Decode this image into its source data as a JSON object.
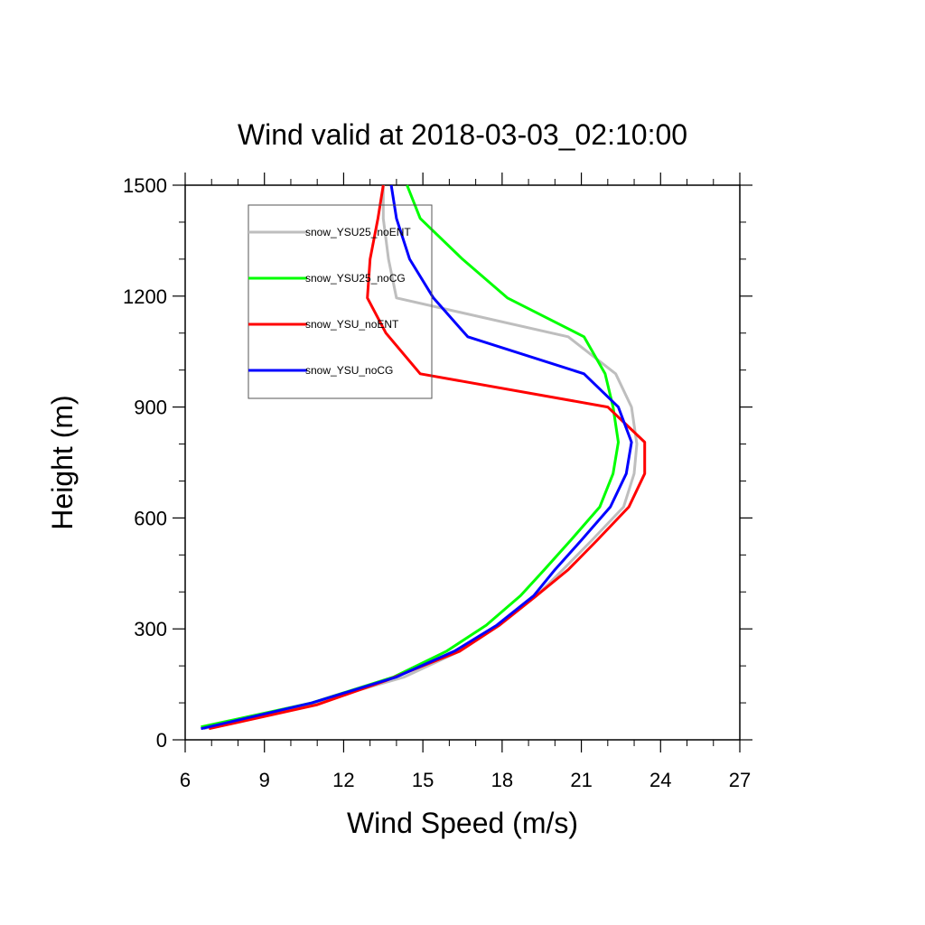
{
  "chart_data": {
    "type": "line",
    "title": "Wind valid at 2018-03-03_02:10:00",
    "xlabel": "Wind Speed (m/s)",
    "ylabel": "Height (m)",
    "xlim": [
      6,
      27
    ],
    "ylim": [
      0,
      1500
    ],
    "x_ticks": [
      6,
      9,
      12,
      15,
      18,
      21,
      24,
      27
    ],
    "y_ticks": [
      0,
      300,
      600,
      900,
      1200,
      1500
    ],
    "x_minor_step": 1,
    "y_minor_step": 100,
    "legend_placement": "top-left",
    "grid": false,
    "series": [
      {
        "name": "snow_YSU25_noENT",
        "color": "#bebebe",
        "points": [
          [
            6.7,
            30
          ],
          [
            10.9,
            100
          ],
          [
            14.3,
            170
          ],
          [
            16.4,
            240
          ],
          [
            17.9,
            310
          ],
          [
            19.3,
            390
          ],
          [
            20.3,
            460
          ],
          [
            21.4,
            540
          ],
          [
            22.6,
            630
          ],
          [
            23.0,
            720
          ],
          [
            23.1,
            800
          ],
          [
            22.9,
            900
          ],
          [
            22.3,
            990
          ],
          [
            20.5,
            1090
          ],
          [
            14.0,
            1195
          ],
          [
            13.7,
            1300
          ],
          [
            13.5,
            1410
          ],
          [
            13.5,
            1500
          ]
        ]
      },
      {
        "name": "snow_YSU25_noCG",
        "color": "#00ff00",
        "points": [
          [
            6.6,
            35
          ],
          [
            10.8,
            100
          ],
          [
            13.9,
            170
          ],
          [
            15.9,
            240
          ],
          [
            17.4,
            310
          ],
          [
            18.7,
            390
          ],
          [
            19.6,
            460
          ],
          [
            20.6,
            540
          ],
          [
            21.7,
            630
          ],
          [
            22.2,
            720
          ],
          [
            22.4,
            805
          ],
          [
            22.2,
            900
          ],
          [
            21.9,
            990
          ],
          [
            21.1,
            1090
          ],
          [
            18.2,
            1195
          ],
          [
            16.5,
            1300
          ],
          [
            14.9,
            1410
          ],
          [
            14.4,
            1500
          ]
        ]
      },
      {
        "name": "snow_YSU_noENT",
        "color": "#ff0000",
        "points": [
          [
            6.9,
            30
          ],
          [
            11.0,
            95
          ],
          [
            13.6,
            160
          ],
          [
            15.0,
            200
          ],
          [
            16.4,
            240
          ],
          [
            17.9,
            310
          ],
          [
            19.3,
            390
          ],
          [
            20.5,
            460
          ],
          [
            21.6,
            540
          ],
          [
            22.8,
            630
          ],
          [
            23.4,
            720
          ],
          [
            23.4,
            805
          ],
          [
            22.0,
            900
          ],
          [
            14.9,
            990
          ],
          [
            13.6,
            1100
          ],
          [
            12.9,
            1195
          ],
          [
            13.0,
            1300
          ],
          [
            13.3,
            1410
          ],
          [
            13.5,
            1500
          ]
        ]
      },
      {
        "name": "snow_YSU_noCG",
        "color": "#0000ff",
        "points": [
          [
            6.6,
            30
          ],
          [
            10.8,
            100
          ],
          [
            14.0,
            170
          ],
          [
            16.2,
            240
          ],
          [
            17.8,
            310
          ],
          [
            19.2,
            390
          ],
          [
            20.0,
            460
          ],
          [
            21.0,
            540
          ],
          [
            22.1,
            630
          ],
          [
            22.7,
            720
          ],
          [
            22.9,
            805
          ],
          [
            22.4,
            900
          ],
          [
            21.1,
            990
          ],
          [
            16.7,
            1090
          ],
          [
            15.4,
            1195
          ],
          [
            14.5,
            1300
          ],
          [
            14.0,
            1410
          ],
          [
            13.8,
            1500
          ]
        ]
      }
    ]
  }
}
